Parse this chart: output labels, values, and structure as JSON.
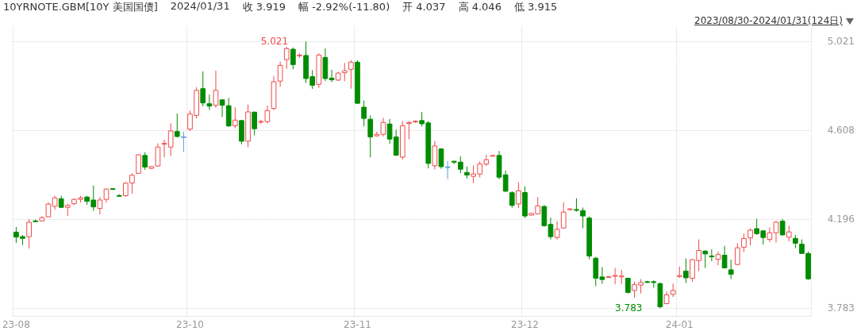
{
  "chart_data": {
    "type": "candlestick",
    "title": "10YRNOTE.GBM[10Y 美国国债]",
    "subtitle": "2023/08/30-2024/01/31(124日)",
    "annotations": [
      "2024/01/31",
      "收 3.919",
      "幅 -2.92%(-11.80)",
      "开 4.037",
      "高 4.046",
      "低 3.915",
      "5.021",
      "3.783"
    ],
    "categories": [
      "23-08",
      null,
      null,
      null,
      null,
      null,
      null,
      null,
      null,
      null,
      null,
      null,
      null,
      null,
      null,
      null,
      null,
      null,
      null,
      null,
      null,
      null,
      null,
      null,
      null,
      null,
      null,
      "23-10",
      null,
      null,
      null,
      null,
      null,
      null,
      null,
      null,
      null,
      null,
      null,
      null,
      null,
      null,
      null,
      null,
      null,
      null,
      null,
      null,
      null,
      null,
      null,
      null,
      null,
      "23-11",
      null,
      null,
      null,
      null,
      null,
      null,
      null,
      null,
      null,
      null,
      null,
      null,
      null,
      null,
      null,
      null,
      null,
      null,
      null,
      null,
      null,
      null,
      null,
      null,
      null,
      "23-12",
      null,
      null,
      null,
      null,
      null,
      null,
      null,
      null,
      null,
      null,
      null,
      null,
      null,
      null,
      null,
      null,
      null,
      null,
      null,
      null,
      null,
      null,
      null,
      "24-01",
      null,
      null,
      null,
      null,
      null,
      null,
      null,
      null,
      null,
      null,
      null,
      null,
      null,
      null,
      null,
      null,
      null,
      null,
      null,
      null
    ],
    "ohlc": [
      [
        4.136,
        4.16,
        4.086,
        4.113
      ],
      [
        4.115,
        4.123,
        4.077,
        4.107
      ],
      [
        4.115,
        4.197,
        4.06,
        4.182
      ],
      [
        4.188,
        4.195,
        4.185,
        4.187
      ],
      [
        4.188,
        4.21,
        4.187,
        4.203
      ],
      [
        4.207,
        4.274,
        4.203,
        4.266
      ],
      [
        4.256,
        4.305,
        4.24,
        4.295
      ],
      [
        4.291,
        4.305,
        4.249,
        4.251
      ],
      [
        4.251,
        4.268,
        4.211,
        4.26
      ],
      [
        4.268,
        4.293,
        4.262,
        4.288
      ],
      [
        4.288,
        4.304,
        4.274,
        4.295
      ],
      [
        4.299,
        4.303,
        4.263,
        4.279
      ],
      [
        4.285,
        4.352,
        4.235,
        4.253
      ],
      [
        4.246,
        4.299,
        4.219,
        4.285
      ],
      [
        4.288,
        4.338,
        4.273,
        4.336
      ],
      [
        4.338,
        4.339,
        4.333,
        4.335
      ],
      [
        4.306,
        4.312,
        4.3,
        4.304
      ],
      [
        4.305,
        4.369,
        4.301,
        4.363
      ],
      [
        4.364,
        4.409,
        4.315,
        4.4
      ],
      [
        4.409,
        4.498,
        4.407,
        4.495
      ],
      [
        4.492,
        4.506,
        4.425,
        4.438
      ],
      [
        4.432,
        4.443,
        4.428,
        4.44
      ],
      [
        4.443,
        4.548,
        4.44,
        4.531
      ],
      [
        4.546,
        4.565,
        4.483,
        4.548
      ],
      [
        4.531,
        4.641,
        4.489,
        4.606
      ],
      [
        4.603,
        4.686,
        4.575,
        4.58
      ],
      [
        4.579,
        4.602,
        4.508,
        4.579
      ],
      [
        4.614,
        4.7,
        4.605,
        4.684
      ],
      [
        4.678,
        4.809,
        4.664,
        4.794
      ],
      [
        4.802,
        4.882,
        4.72,
        4.736
      ],
      [
        4.732,
        4.775,
        4.703,
        4.721
      ],
      [
        4.725,
        4.886,
        4.713,
        4.794
      ],
      [
        4.75,
        4.752,
        4.67,
        4.725
      ],
      [
        4.723,
        4.759,
        4.624,
        4.629
      ],
      [
        4.63,
        4.715,
        4.618,
        4.656
      ],
      [
        4.654,
        4.656,
        4.544,
        4.558
      ],
      [
        4.558,
        4.728,
        4.53,
        4.694
      ],
      [
        4.693,
        4.696,
        4.585,
        4.616
      ],
      [
        4.648,
        4.658,
        4.637,
        4.65
      ],
      [
        4.649,
        4.724,
        4.641,
        4.7
      ],
      [
        4.71,
        4.86,
        4.702,
        4.834
      ],
      [
        4.837,
        4.928,
        4.811,
        4.91
      ],
      [
        4.937,
        4.996,
        4.894,
        4.988
      ],
      [
        4.985,
        4.993,
        4.892,
        4.914
      ],
      [
        4.956,
        4.966,
        4.944,
        4.958
      ],
      [
        4.956,
        5.021,
        4.829,
        4.849
      ],
      [
        4.858,
        4.888,
        4.801,
        4.818
      ],
      [
        4.822,
        4.966,
        4.806,
        4.958
      ],
      [
        4.947,
        4.989,
        4.837,
        4.849
      ],
      [
        4.851,
        4.89,
        4.833,
        4.843
      ],
      [
        4.842,
        4.88,
        4.838,
        4.874
      ],
      [
        4.876,
        4.921,
        4.836,
        4.885
      ],
      [
        4.892,
        4.934,
        4.802,
        4.925
      ],
      [
        4.925,
        4.934,
        4.732,
        4.734
      ],
      [
        4.716,
        4.747,
        4.627,
        4.664
      ],
      [
        4.66,
        4.678,
        4.483,
        4.578
      ],
      [
        4.583,
        4.602,
        4.58,
        4.59
      ],
      [
        4.59,
        4.667,
        4.58,
        4.645
      ],
      [
        4.638,
        4.661,
        4.546,
        4.568
      ],
      [
        4.578,
        4.612,
        4.489,
        4.493
      ],
      [
        4.484,
        4.652,
        4.473,
        4.63
      ],
      [
        4.64,
        4.651,
        4.567,
        4.645
      ],
      [
        4.648,
        4.655,
        4.643,
        4.651
      ],
      [
        4.654,
        4.694,
        4.626,
        4.639
      ],
      [
        4.643,
        4.652,
        4.432,
        4.455
      ],
      [
        4.444,
        4.558,
        4.427,
        4.536
      ],
      [
        4.522,
        4.526,
        4.43,
        4.44
      ],
      [
        4.439,
        4.465,
        4.382,
        4.439
      ],
      [
        4.465,
        4.467,
        4.452,
        4.461
      ],
      [
        4.461,
        4.488,
        4.409,
        4.428
      ],
      [
        4.413,
        4.44,
        4.385,
        4.401
      ],
      [
        4.395,
        4.446,
        4.364,
        4.406
      ],
      [
        4.406,
        4.465,
        4.39,
        4.452
      ],
      [
        4.452,
        4.494,
        4.443,
        4.472
      ],
      [
        4.489,
        4.494,
        4.487,
        4.492
      ],
      [
        4.492,
        4.513,
        4.382,
        4.391
      ],
      [
        4.402,
        4.422,
        4.322,
        4.326
      ],
      [
        4.319,
        4.326,
        4.25,
        4.26
      ],
      [
        4.267,
        4.368,
        4.248,
        4.328
      ],
      [
        4.32,
        4.348,
        4.201,
        4.211
      ],
      [
        4.215,
        4.225,
        4.213,
        4.223
      ],
      [
        4.221,
        4.299,
        4.219,
        4.258
      ],
      [
        4.255,
        4.262,
        4.161,
        4.166
      ],
      [
        4.172,
        4.203,
        4.102,
        4.115
      ],
      [
        4.111,
        4.186,
        4.102,
        4.149
      ],
      [
        4.155,
        4.274,
        4.151,
        4.229
      ],
      [
        4.24,
        4.247,
        4.237,
        4.244
      ],
      [
        4.241,
        4.293,
        4.231,
        4.238
      ],
      [
        4.236,
        4.25,
        4.154,
        4.211
      ],
      [
        4.201,
        4.209,
        4.01,
        4.025
      ],
      [
        4.015,
        4.02,
        3.885,
        3.922
      ],
      [
        3.928,
        3.973,
        3.896,
        3.916
      ],
      [
        3.927,
        3.931,
        3.924,
        3.929
      ],
      [
        3.933,
        3.97,
        3.894,
        3.935
      ],
      [
        3.929,
        3.961,
        3.896,
        3.932
      ],
      [
        3.922,
        3.924,
        3.851,
        3.856
      ],
      [
        3.865,
        3.906,
        3.832,
        3.892
      ],
      [
        3.89,
        3.918,
        3.851,
        3.902
      ],
      [
        3.906,
        3.91,
        3.9,
        3.904
      ],
      [
        3.906,
        3.912,
        3.878,
        3.902
      ],
      [
        3.897,
        3.902,
        3.783,
        3.789
      ],
      [
        3.804,
        3.86,
        3.801,
        3.845
      ],
      [
        3.847,
        3.897,
        3.835,
        3.865
      ],
      [
        3.931,
        3.976,
        3.924,
        3.934
      ],
      [
        3.955,
        4.014,
        3.9,
        3.924
      ],
      [
        3.922,
        4.01,
        3.906,
        4.008
      ],
      [
        4.004,
        4.102,
        3.955,
        4.051
      ],
      [
        4.048,
        4.052,
        3.97,
        4.035
      ],
      [
        4.025,
        4.056,
        4.001,
        4.023
      ],
      [
        4.01,
        4.045,
        3.982,
        4.032
      ],
      [
        4.029,
        4.072,
        3.967,
        3.97
      ],
      [
        3.961,
        4.008,
        3.918,
        3.94
      ],
      [
        3.986,
        4.084,
        3.982,
        4.063
      ],
      [
        4.066,
        4.129,
        4.043,
        4.106
      ],
      [
        4.109,
        4.154,
        4.074,
        4.145
      ],
      [
        4.152,
        4.198,
        4.123,
        4.129
      ],
      [
        4.142,
        4.143,
        4.078,
        4.111
      ],
      [
        4.102,
        4.158,
        4.09,
        4.133
      ],
      [
        4.133,
        4.188,
        4.088,
        4.182
      ],
      [
        4.187,
        4.198,
        4.121,
        4.123
      ],
      [
        4.112,
        4.166,
        4.093,
        4.137
      ],
      [
        4.107,
        4.123,
        4.062,
        4.084
      ],
      [
        4.08,
        4.102,
        4.035,
        4.037
      ],
      [
        4.037,
        4.046,
        3.915,
        3.919
      ]
    ],
    "colors": [
      "#008c00",
      "#008c00",
      "#f04a4a",
      "#008c00",
      "#f04a4a",
      "#f04a4a",
      "#f04a4a",
      "#008c00",
      "#f04a4a",
      "#f04a4a",
      "#f04a4a",
      "#008c00",
      "#008c00",
      "#f04a4a",
      "#f04a4a",
      "#008c00",
      "#008c00",
      "#f04a4a",
      "#f04a4a",
      "#f04a4a",
      "#008c00",
      "#f04a4a",
      "#f04a4a",
      "#f04a4a",
      "#f04a4a",
      "#008c00",
      "#5b9bd5",
      "#f04a4a",
      "#f04a4a",
      "#008c00",
      "#008c00",
      "#f04a4a",
      "#008c00",
      "#008c00",
      "#f04a4a",
      "#008c00",
      "#f04a4a",
      "#008c00",
      "#f04a4a",
      "#f04a4a",
      "#f04a4a",
      "#f04a4a",
      "#f04a4a",
      "#008c00",
      "#f04a4a",
      "#008c00",
      "#008c00",
      "#f04a4a",
      "#008c00",
      "#008c00",
      "#f04a4a",
      "#f04a4a",
      "#f04a4a",
      "#008c00",
      "#008c00",
      "#008c00",
      "#f04a4a",
      "#f04a4a",
      "#008c00",
      "#008c00",
      "#f04a4a",
      "#f04a4a",
      "#f04a4a",
      "#008c00",
      "#008c00",
      "#f04a4a",
      "#008c00",
      "#5b9bd5",
      "#008c00",
      "#008c00",
      "#008c00",
      "#f04a4a",
      "#f04a4a",
      "#f04a4a",
      "#f04a4a",
      "#008c00",
      "#008c00",
      "#008c00",
      "#f04a4a",
      "#008c00",
      "#f04a4a",
      "#f04a4a",
      "#008c00",
      "#008c00",
      "#f04a4a",
      "#f04a4a",
      "#f04a4a",
      "#008c00",
      "#008c00",
      "#008c00",
      "#008c00",
      "#008c00",
      "#f04a4a",
      "#f04a4a",
      "#f04a4a",
      "#008c00",
      "#f04a4a",
      "#f04a4a",
      "#008c00",
      "#008c00",
      "#008c00",
      "#f04a4a",
      "#f04a4a",
      "#f04a4a",
      "#008c00",
      "#f04a4a",
      "#f04a4a",
      "#008c00",
      "#008c00",
      "#f04a4a",
      "#008c00",
      "#008c00",
      "#f04a4a",
      "#f04a4a",
      "#f04a4a",
      "#008c00",
      "#008c00",
      "#f04a4a",
      "#f04a4a",
      "#008c00",
      "#f04a4a",
      "#008c00",
      "#008c00",
      "#008c00"
    ],
    "ylim": [
      3.747,
      5.092
    ],
    "yticks": [
      3.783,
      4.196,
      4.608,
      5.021
    ],
    "grid": true
  }
}
